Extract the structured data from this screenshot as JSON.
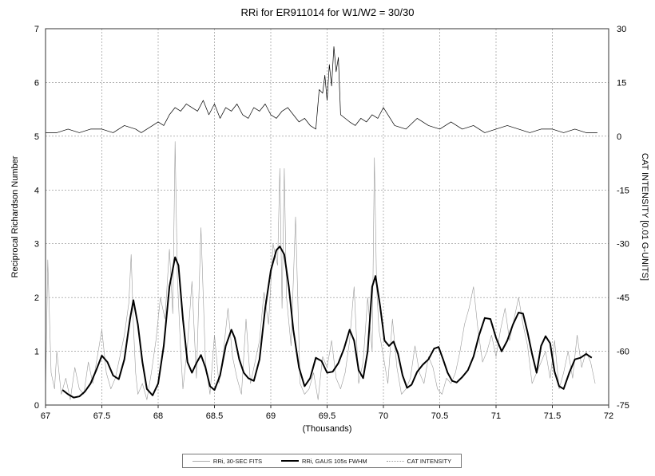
{
  "chart_data": {
    "type": "line",
    "title": "RRi for ER911014 for W1/W2 = 30/30",
    "xlabel": "(Thousands)",
    "ylabel": "Reciprocal Richardson Number",
    "y2label": "CAT INTENSITY [0.01 G-UNITS]",
    "xlim": [
      67,
      72
    ],
    "ylim": [
      0,
      7
    ],
    "y2lim": [
      -75,
      30
    ],
    "x_ticks": [
      "67",
      "67.5",
      "68",
      "68.5",
      "69",
      "69.5",
      "70",
      "70.5",
      "71",
      "71.5",
      "72"
    ],
    "y_ticks": [
      "0",
      "1",
      "2",
      "3",
      "4",
      "5",
      "6",
      "7"
    ],
    "y2_ticks": [
      "30",
      "15",
      "0",
      "-15",
      "-30",
      "-45",
      "-60",
      "-75"
    ],
    "grid": true,
    "legend_position": "bottom",
    "series": [
      {
        "name": "RRi, 30-SEC FITS",
        "color": "#9a9a9a",
        "style": "thin",
        "x": [
          67.0,
          67.02,
          67.05,
          67.08,
          67.1,
          67.14,
          67.18,
          67.22,
          67.26,
          67.3,
          67.34,
          67.38,
          67.42,
          67.46,
          67.5,
          67.54,
          67.58,
          67.62,
          67.66,
          67.7,
          67.74,
          67.76,
          67.78,
          67.8,
          67.82,
          67.86,
          67.9,
          67.94,
          67.98,
          68.02,
          68.06,
          68.1,
          68.13,
          68.15,
          68.17,
          68.2,
          68.22,
          68.26,
          68.3,
          68.34,
          68.38,
          68.42,
          68.46,
          68.5,
          68.54,
          68.58,
          68.62,
          68.66,
          68.7,
          68.74,
          68.78,
          68.82,
          68.86,
          68.9,
          68.94,
          68.98,
          69.02,
          69.06,
          69.08,
          69.1,
          69.12,
          69.14,
          69.18,
          69.22,
          69.26,
          69.3,
          69.34,
          69.38,
          69.42,
          69.46,
          69.5,
          69.54,
          69.58,
          69.62,
          69.66,
          69.7,
          69.74,
          69.78,
          69.82,
          69.86,
          69.9,
          69.92,
          69.94,
          69.96,
          70.0,
          70.04,
          70.08,
          70.12,
          70.16,
          70.2,
          70.24,
          70.28,
          70.32,
          70.36,
          70.4,
          70.44,
          70.48,
          70.52,
          70.56,
          70.6,
          70.64,
          70.68,
          70.72,
          70.76,
          70.8,
          70.84,
          70.88,
          70.92,
          70.96,
          71.0,
          71.04,
          71.08,
          71.12,
          71.16,
          71.2,
          71.24,
          71.28,
          71.32,
          71.36,
          71.4,
          71.44,
          71.48,
          71.52,
          71.56,
          71.6,
          71.64,
          71.68,
          71.72,
          71.76,
          71.8,
          71.84,
          71.88
        ],
        "values": [
          0.2,
          2.7,
          0.6,
          0.3,
          1.0,
          0.2,
          0.5,
          0.1,
          0.7,
          0.3,
          0.2,
          0.8,
          0.4,
          0.9,
          1.4,
          0.6,
          0.3,
          0.5,
          0.9,
          1.3,
          1.9,
          2.8,
          1.5,
          0.6,
          0.2,
          0.4,
          0.1,
          0.6,
          1.2,
          2.0,
          1.6,
          2.9,
          1.7,
          4.9,
          2.4,
          1.0,
          0.3,
          1.1,
          2.3,
          0.5,
          3.3,
          0.8,
          0.2,
          1.3,
          0.4,
          1.0,
          1.8,
          0.9,
          0.5,
          0.2,
          1.6,
          0.4,
          0.8,
          1.2,
          2.1,
          1.5,
          3.0,
          2.6,
          4.4,
          1.8,
          4.4,
          2.0,
          1.1,
          3.5,
          0.4,
          0.2,
          0.3,
          0.6,
          0.1,
          0.9,
          0.7,
          1.2,
          0.5,
          0.3,
          0.6,
          1.2,
          2.2,
          0.4,
          0.8,
          2.0,
          1.0,
          4.6,
          2.2,
          1.4,
          0.9,
          0.4,
          1.6,
          0.7,
          0.2,
          0.3,
          0.5,
          1.1,
          0.6,
          0.4,
          0.9,
          0.7,
          0.3,
          0.2,
          0.5,
          0.4,
          0.6,
          1.0,
          1.5,
          1.8,
          2.2,
          1.4,
          0.8,
          1.0,
          1.3,
          0.9,
          1.4,
          1.8,
          1.2,
          1.6,
          2.0,
          1.5,
          1.1,
          0.4,
          0.6,
          0.8,
          1.0,
          0.5,
          1.2,
          0.3,
          0.6,
          1.0,
          0.5,
          1.3,
          0.7,
          1.0,
          0.8,
          0.4
        ]
      },
      {
        "name": "RRi, GAUS 105s FWHM",
        "color": "#000000",
        "style": "thick",
        "x": [
          67.15,
          67.2,
          67.25,
          67.3,
          67.35,
          67.4,
          67.45,
          67.5,
          67.55,
          67.6,
          67.65,
          67.7,
          67.75,
          67.78,
          67.82,
          67.86,
          67.9,
          67.95,
          68.0,
          68.05,
          68.1,
          68.15,
          68.18,
          68.22,
          68.26,
          68.3,
          68.34,
          68.38,
          68.42,
          68.46,
          68.5,
          68.55,
          68.6,
          68.65,
          68.68,
          68.72,
          68.76,
          68.8,
          68.85,
          68.9,
          68.95,
          69.0,
          69.05,
          69.08,
          69.12,
          69.16,
          69.2,
          69.25,
          69.3,
          69.35,
          69.4,
          69.45,
          69.5,
          69.55,
          69.6,
          69.65,
          69.7,
          69.74,
          69.78,
          69.82,
          69.86,
          69.9,
          69.93,
          69.97,
          70.01,
          70.05,
          70.09,
          70.13,
          70.17,
          70.21,
          70.25,
          70.3,
          70.35,
          70.4,
          70.45,
          70.49,
          70.53,
          70.57,
          70.61,
          70.65,
          70.7,
          70.75,
          70.8,
          70.85,
          70.9,
          70.95,
          71.0,
          71.05,
          71.1,
          71.15,
          71.2,
          71.24,
          71.28,
          71.32,
          71.36,
          71.4,
          71.44,
          71.48,
          71.52,
          71.56,
          71.6,
          71.65,
          71.7,
          71.75,
          71.8,
          71.85
        ],
        "values": [
          0.28,
          0.2,
          0.14,
          0.16,
          0.25,
          0.4,
          0.65,
          0.92,
          0.8,
          0.55,
          0.48,
          0.85,
          1.6,
          1.95,
          1.5,
          0.8,
          0.3,
          0.18,
          0.4,
          1.1,
          2.2,
          2.75,
          2.6,
          1.6,
          0.8,
          0.6,
          0.78,
          0.93,
          0.7,
          0.35,
          0.28,
          0.55,
          1.1,
          1.4,
          1.25,
          0.85,
          0.6,
          0.5,
          0.45,
          0.85,
          1.8,
          2.5,
          2.88,
          2.95,
          2.8,
          2.2,
          1.4,
          0.7,
          0.35,
          0.5,
          0.88,
          0.82,
          0.6,
          0.62,
          0.78,
          1.05,
          1.4,
          1.2,
          0.65,
          0.5,
          1.0,
          2.2,
          2.4,
          1.85,
          1.2,
          1.1,
          1.18,
          0.95,
          0.55,
          0.32,
          0.38,
          0.62,
          0.75,
          0.85,
          1.05,
          1.08,
          0.85,
          0.6,
          0.45,
          0.42,
          0.52,
          0.65,
          0.9,
          1.3,
          1.62,
          1.6,
          1.25,
          1.0,
          1.2,
          1.5,
          1.72,
          1.7,
          1.35,
          0.95,
          0.6,
          1.1,
          1.28,
          1.15,
          0.62,
          0.35,
          0.3,
          0.6,
          0.85,
          0.88,
          0.95,
          0.88
        ]
      },
      {
        "name": "CAT INTENSITY",
        "color": "#000000",
        "style": "thin",
        "axis": "right",
        "x": [
          67.0,
          67.1,
          67.2,
          67.3,
          67.4,
          67.5,
          67.6,
          67.7,
          67.8,
          67.85,
          67.9,
          67.95,
          68.0,
          68.05,
          68.1,
          68.15,
          68.2,
          68.25,
          68.3,
          68.35,
          68.4,
          68.45,
          68.5,
          68.55,
          68.6,
          68.65,
          68.7,
          68.75,
          68.8,
          68.85,
          68.9,
          68.95,
          69.0,
          69.05,
          69.1,
          69.15,
          69.2,
          69.25,
          69.3,
          69.35,
          69.4,
          69.43,
          69.46,
          69.48,
          69.5,
          69.52,
          69.54,
          69.56,
          69.58,
          69.6,
          69.62,
          69.66,
          69.7,
          69.75,
          69.8,
          69.85,
          69.9,
          69.95,
          70.0,
          70.1,
          70.2,
          70.3,
          70.4,
          70.5,
          70.6,
          70.7,
          70.8,
          70.9,
          71.0,
          71.1,
          71.2,
          71.3,
          71.4,
          71.5,
          71.6,
          71.7,
          71.8,
          71.9
        ],
        "values": [
          1,
          1,
          2,
          1,
          2,
          2,
          1,
          3,
          2,
          1,
          2,
          3,
          4,
          3,
          6,
          8,
          7,
          9,
          8,
          7,
          10,
          6,
          9,
          5,
          8,
          7,
          9,
          6,
          5,
          8,
          7,
          9,
          6,
          5,
          7,
          8,
          6,
          4,
          5,
          3,
          2,
          13,
          12,
          17,
          10,
          20,
          14,
          25,
          18,
          22,
          6,
          5,
          4,
          3,
          5,
          4,
          6,
          5,
          8,
          3,
          2,
          5,
          3,
          2,
          4,
          2,
          3,
          1,
          2,
          3,
          2,
          1,
          2,
          2,
          1,
          2,
          1,
          1
        ]
      }
    ]
  },
  "legend": [
    {
      "label": "RRi, 30-SEC FITS",
      "style": "thin"
    },
    {
      "label": "RRi, GAUS 105s FWHM",
      "style": "thick"
    },
    {
      "label": "CAT INTENSITY",
      "style": "dotted"
    }
  ],
  "margin_mark": "01"
}
